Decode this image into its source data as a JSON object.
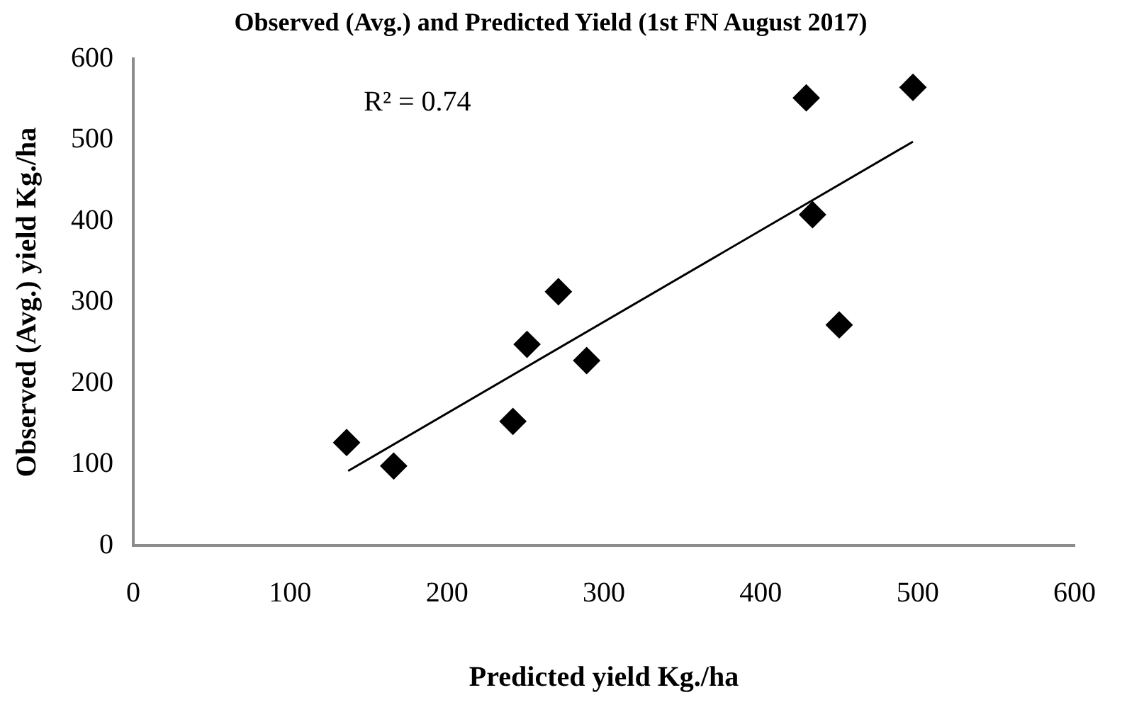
{
  "chart_data": {
    "type": "scatter",
    "title": "Observed (Avg.) and Predicted Yield (1st FN August 2017)",
    "xlabel": "Predicted yield Kg./ha",
    "ylabel": "Observed (Avg.) yield Kg./ha",
    "annotations": [
      "R² = 0.74"
    ],
    "marker": "diamond",
    "grid": false,
    "legend": false,
    "xlim": [
      0,
      600
    ],
    "xticks": [
      0,
      100,
      200,
      300,
      400,
      500,
      600
    ],
    "ylim": [
      0,
      600
    ],
    "yticks": [
      0,
      100,
      200,
      300,
      400,
      500,
      600
    ],
    "series": [
      {
        "color": "#000000",
        "x": [
          136,
          166,
          242,
          251,
          271,
          289,
          429,
          433,
          450,
          497
        ],
        "values": [
          127,
          98,
          153,
          248,
          313,
          228,
          552,
          408,
          272,
          565
        ]
      },
      {
        "type": "line",
        "marker": "none",
        "color": "#000000",
        "x": [
          137,
          497
        ],
        "values": [
          92,
          498
        ]
      }
    ]
  }
}
